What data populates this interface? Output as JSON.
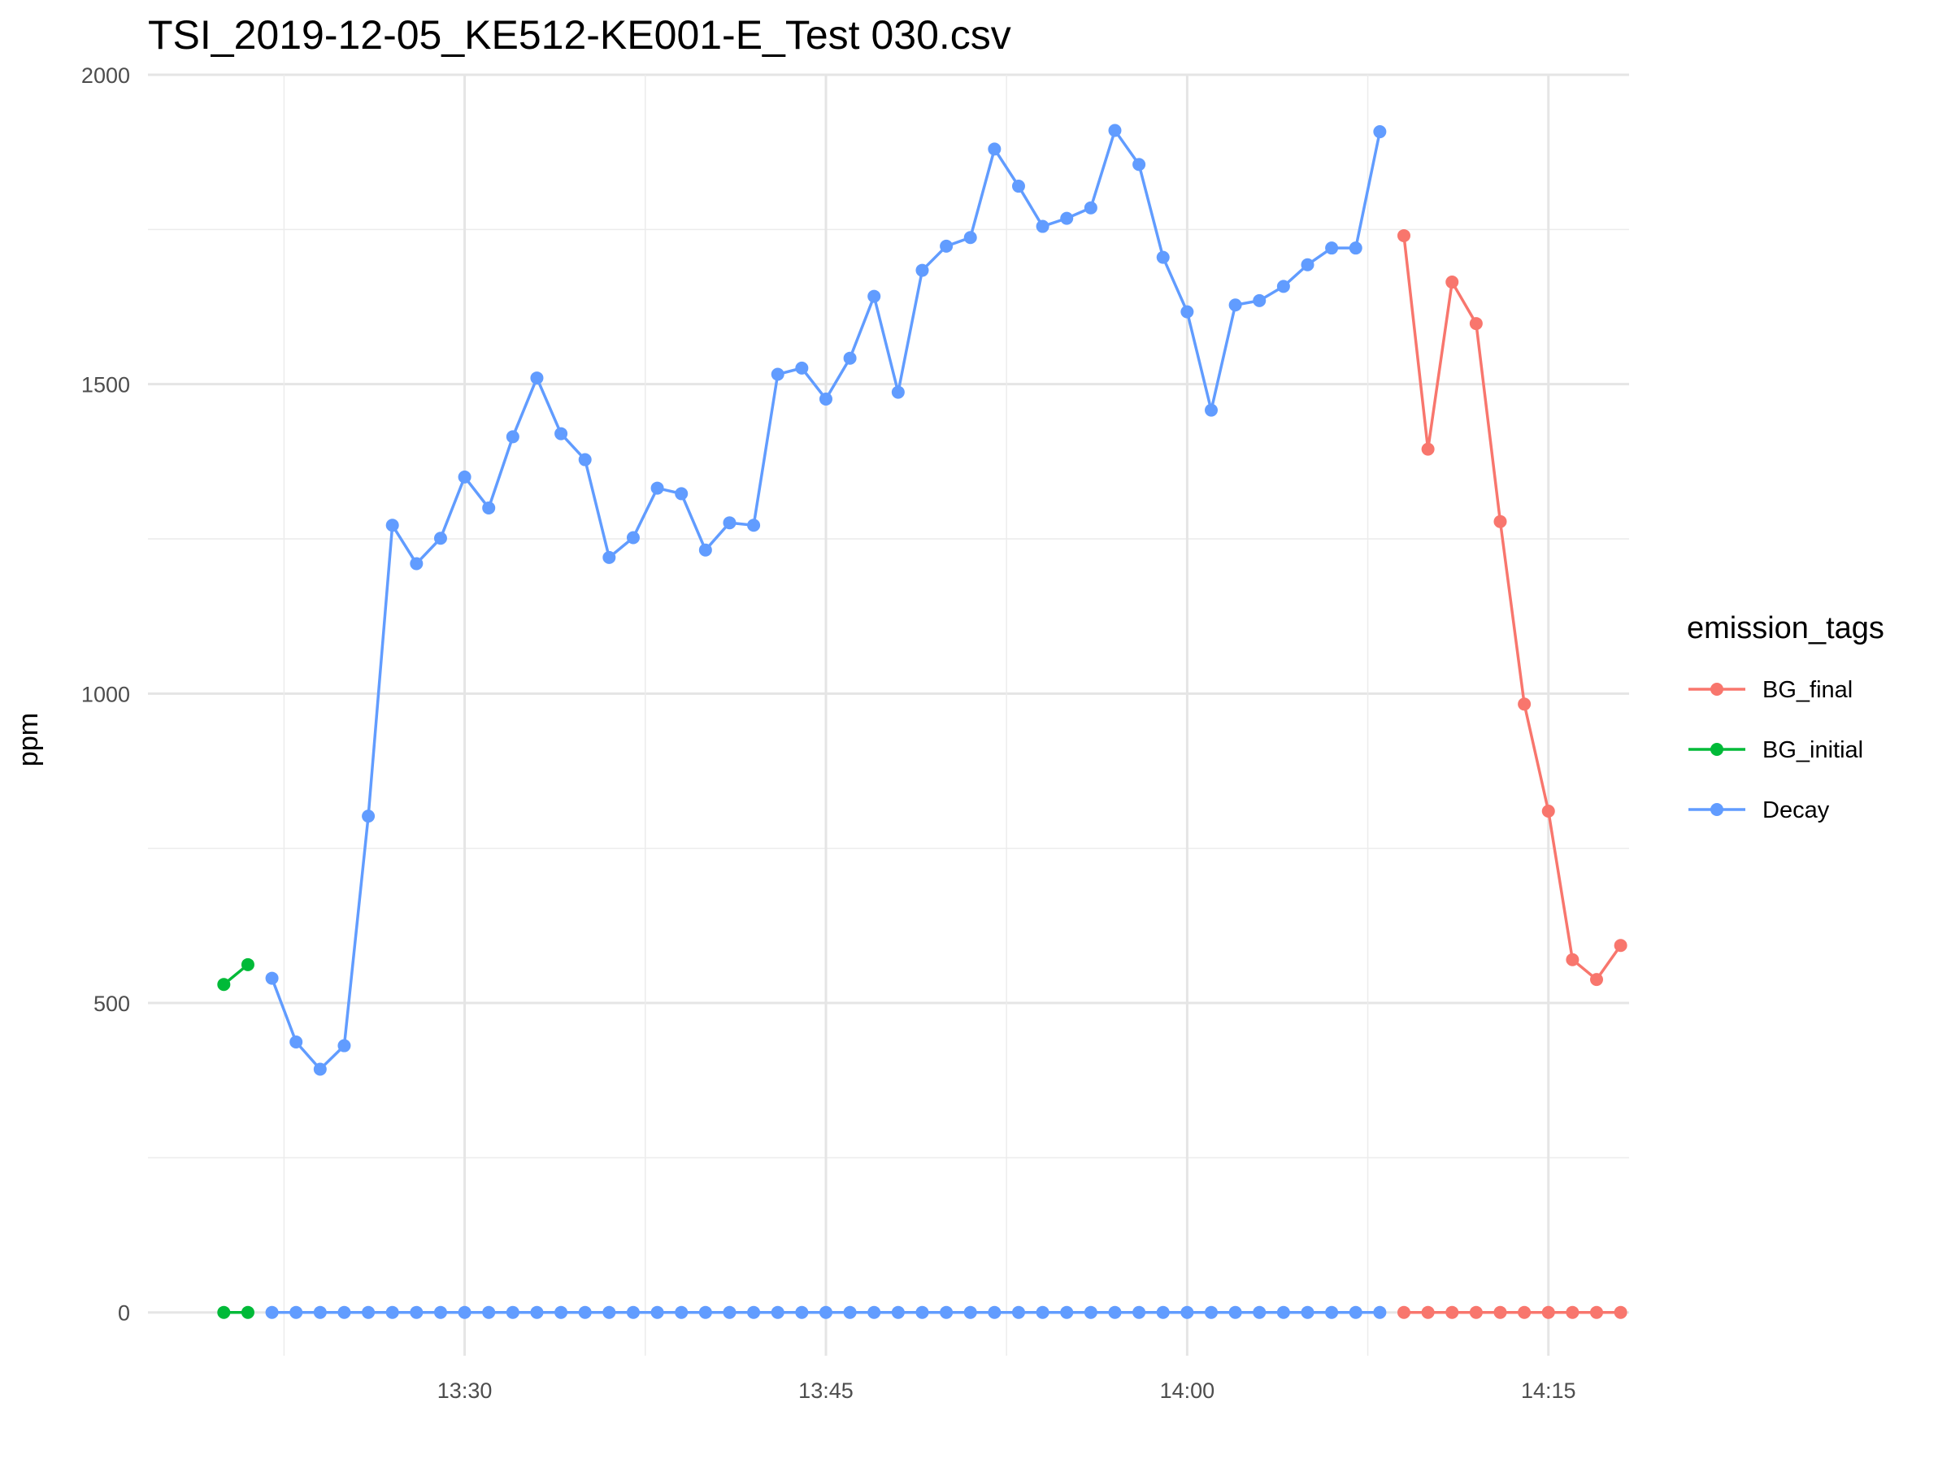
{
  "chart_data": {
    "type": "line",
    "title": "TSI_2019-12-05_KE512-KE001-E_Test 030.csv",
    "xlabel": "",
    "ylabel": "ppm",
    "x_unit": "time (HH:MM)",
    "xlim": [
      "13:17",
      "14:18"
    ],
    "ylim": [
      -70,
      2000
    ],
    "x_ticks": [
      "13:30",
      "13:45",
      "14:00",
      "14:15"
    ],
    "y_ticks": [
      0,
      500,
      1000,
      1500,
      2000
    ],
    "grid": true,
    "legend": {
      "title": "emission_tags",
      "position": "right"
    },
    "series": [
      {
        "name": "BG_final",
        "color": "#F8766D",
        "points": [
          {
            "x": "14:09",
            "y": 1740
          },
          {
            "x": "14:10",
            "y": 1395
          },
          {
            "x": "14:11",
            "y": 1665
          },
          {
            "x": "14:12",
            "y": 1598
          },
          {
            "x": "14:13",
            "y": 1278
          },
          {
            "x": "14:14",
            "y": 983
          },
          {
            "x": "14:15",
            "y": 810
          },
          {
            "x": "14:16",
            "y": 570
          },
          {
            "x": "14:17",
            "y": 538
          },
          {
            "x": "14:18",
            "y": 593
          }
        ],
        "zero_points": [
          "14:09",
          "14:10",
          "14:11",
          "14:12",
          "14:13",
          "14:14",
          "14:15",
          "14:16",
          "14:17",
          "14:18"
        ]
      },
      {
        "name": "BG_initial",
        "color": "#00BA38",
        "points": [
          {
            "x": "13:20",
            "y": 530
          },
          {
            "x": "13:21",
            "y": 562
          }
        ],
        "zero_points": [
          "13:20",
          "13:21"
        ]
      },
      {
        "name": "Decay",
        "color": "#619CFF",
        "points": [
          {
            "x": "13:22",
            "y": 540
          },
          {
            "x": "13:23",
            "y": 437
          },
          {
            "x": "13:24",
            "y": 393
          },
          {
            "x": "13:25",
            "y": 431
          },
          {
            "x": "13:26",
            "y": 802
          },
          {
            "x": "13:27",
            "y": 1272
          },
          {
            "x": "13:28",
            "y": 1210
          },
          {
            "x": "13:29",
            "y": 1251
          },
          {
            "x": "13:30",
            "y": 1350
          },
          {
            "x": "13:31",
            "y": 1300
          },
          {
            "x": "13:32",
            "y": 1415
          },
          {
            "x": "13:33",
            "y": 1510
          },
          {
            "x": "13:34",
            "y": 1420
          },
          {
            "x": "13:35",
            "y": 1378
          },
          {
            "x": "13:36",
            "y": 1220
          },
          {
            "x": "13:37",
            "y": 1252
          },
          {
            "x": "13:38",
            "y": 1332
          },
          {
            "x": "13:39",
            "y": 1323
          },
          {
            "x": "13:40",
            "y": 1232
          },
          {
            "x": "13:41",
            "y": 1276
          },
          {
            "x": "13:42",
            "y": 1272
          },
          {
            "x": "13:43",
            "y": 1516
          },
          {
            "x": "13:44",
            "y": 1526
          },
          {
            "x": "13:45",
            "y": 1476
          },
          {
            "x": "13:46",
            "y": 1542
          },
          {
            "x": "13:47",
            "y": 1642
          },
          {
            "x": "13:48",
            "y": 1487
          },
          {
            "x": "13:49",
            "y": 1684
          },
          {
            "x": "13:50",
            "y": 1723
          },
          {
            "x": "13:51",
            "y": 1737
          },
          {
            "x": "13:52",
            "y": 1880
          },
          {
            "x": "13:53",
            "y": 1820
          },
          {
            "x": "13:54",
            "y": 1755
          },
          {
            "x": "13:55",
            "y": 1768
          },
          {
            "x": "13:56",
            "y": 1785
          },
          {
            "x": "13:57",
            "y": 1910
          },
          {
            "x": "13:58",
            "y": 1855
          },
          {
            "x": "13:59",
            "y": 1705
          },
          {
            "x": "14:00",
            "y": 1617
          },
          {
            "x": "14:01",
            "y": 1458
          },
          {
            "x": "14:02",
            "y": 1628
          },
          {
            "x": "14:03",
            "y": 1635
          },
          {
            "x": "14:04",
            "y": 1658
          },
          {
            "x": "14:05",
            "y": 1693
          },
          {
            "x": "14:06",
            "y": 1720
          },
          {
            "x": "14:07",
            "y": 1720
          },
          {
            "x": "14:08",
            "y": 1908
          }
        ],
        "zero_points": [
          "13:22",
          "13:23",
          "13:24",
          "13:25",
          "13:26",
          "13:27",
          "13:28",
          "13:29",
          "13:30",
          "13:31",
          "13:32",
          "13:33",
          "13:34",
          "13:35",
          "13:36",
          "13:37",
          "13:38",
          "13:39",
          "13:40",
          "13:41",
          "13:42",
          "13:43",
          "13:44",
          "13:45",
          "13:46",
          "13:47",
          "13:48",
          "13:49",
          "13:50",
          "13:51",
          "13:52",
          "13:53",
          "13:54",
          "13:55",
          "13:56",
          "13:57",
          "13:58",
          "13:59",
          "14:00",
          "14:01",
          "14:02",
          "14:03",
          "14:04",
          "14:05",
          "14:06",
          "14:07",
          "14:08"
        ]
      }
    ]
  }
}
